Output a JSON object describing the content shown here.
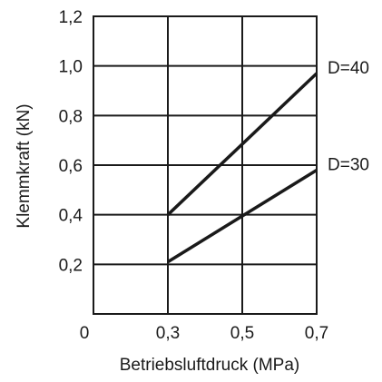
{
  "chart_data": {
    "type": "line",
    "title": "",
    "xlabel": "Betriebsluftdruck (MPa)",
    "ylabel": "Klemmkraft (kN)",
    "xlim": [
      0,
      0.7
    ],
    "ylim": [
      0,
      1.2
    ],
    "x_axis_break": [
      0,
      0.2
    ],
    "x_ticks": [
      0.3,
      0.5,
      0.7
    ],
    "x_tick_labels": [
      "0,3",
      "0,5",
      "0,7"
    ],
    "x_origin_label": "0",
    "y_ticks": [
      0.2,
      0.4,
      0.6,
      0.8,
      1.0,
      1.2
    ],
    "y_tick_labels": [
      "0,2",
      "0,4",
      "0,6",
      "0,8",
      "1,0",
      "1,2"
    ],
    "grid": true,
    "legend": "none",
    "series": [
      {
        "name": "D=40",
        "x": [
          0.3,
          0.7
        ],
        "y": [
          0.4,
          0.97
        ],
        "color": "#1a1a1a"
      },
      {
        "name": "D=30",
        "x": [
          0.3,
          0.7
        ],
        "y": [
          0.21,
          0.58
        ],
        "color": "#1a1a1a"
      }
    ]
  }
}
